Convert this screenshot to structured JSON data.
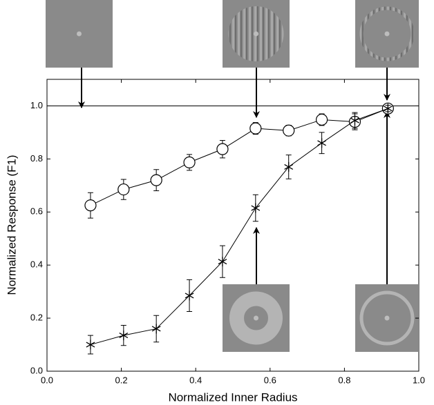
{
  "chart_data": {
    "type": "line",
    "x_label": "Normalized Inner Radius",
    "y_label": "Normalized Response (F1)",
    "x": [
      0.117,
      0.206,
      0.294,
      0.383,
      0.472,
      0.561,
      0.65,
      0.739,
      0.828,
      0.917
    ],
    "series": [
      {
        "marker": "circle",
        "color": "#000000",
        "values": [
          0.625,
          0.685,
          0.72,
          0.787,
          0.837,
          0.915,
          0.907,
          0.948,
          0.94,
          0.99
        ],
        "errors": [
          0.048,
          0.038,
          0.04,
          0.03,
          0.033,
          0.022,
          0.02,
          0.022,
          0.03,
          0.015
        ]
      },
      {
        "marker": "star",
        "color": "#000000",
        "values": [
          0.1,
          0.135,
          0.16,
          0.285,
          0.413,
          0.615,
          0.77,
          0.86,
          0.945,
          0.99
        ],
        "errors": [
          0.035,
          0.038,
          0.05,
          0.06,
          0.06,
          0.05,
          0.045,
          0.04,
          0.03,
          0.012
        ]
      }
    ],
    "reference_line": 1,
    "xlim": [
      0,
      1
    ],
    "ylim": [
      0,
      1.1
    ],
    "xticks": [
      {
        "value": 0,
        "label": "0.0"
      },
      {
        "value": 0.2,
        "label": "0.2"
      },
      {
        "value": 0.4,
        "label": "0.4"
      },
      {
        "value": 0.6,
        "label": "0.6"
      },
      {
        "value": 0.8,
        "label": "0.8"
      },
      {
        "value": 1,
        "label": "1.0"
      }
    ],
    "yticks": [
      {
        "value": 0,
        "label": "0.0"
      },
      {
        "value": 0.2,
        "label": "0.2"
      },
      {
        "value": 0.4,
        "label": "0.4"
      },
      {
        "value": 0.6,
        "label": "0.6"
      },
      {
        "value": 0.8,
        "label": "0.8"
      },
      {
        "value": 1,
        "label": "1.0"
      }
    ],
    "grid": false
  }
}
